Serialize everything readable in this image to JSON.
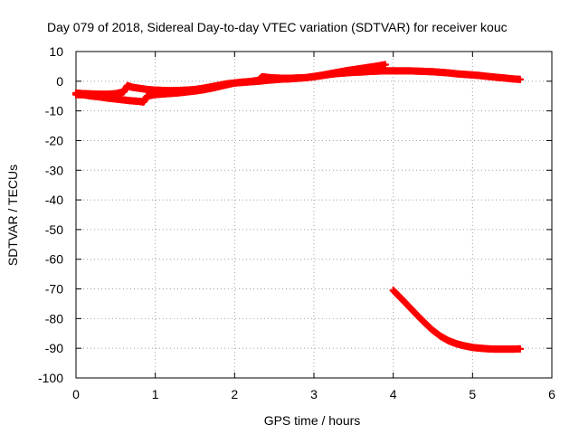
{
  "chart_data": {
    "type": "scatter",
    "title": "Day 079 of 2018, Sidereal Day-to-day VTEC variation (SDTVAR) for receiver kouc",
    "xlabel": "GPS time / hours",
    "ylabel": "SDTVAR / TECUs",
    "xlim": [
      0,
      6
    ],
    "ylim": [
      -100,
      10
    ],
    "x_ticks": [
      "0",
      "1",
      "2",
      "3",
      "4",
      "5",
      "6"
    ],
    "y_ticks": [
      "10",
      "0",
      "-10",
      "-20",
      "-30",
      "-40",
      "-50",
      "-60",
      "-70",
      "-80",
      "-90",
      "-100"
    ],
    "x_tick_values": [
      0,
      1,
      2,
      3,
      4,
      5,
      6
    ],
    "y_tick_values": [
      10,
      0,
      -10,
      -20,
      -30,
      -40,
      -50,
      -60,
      -70,
      -80,
      -90,
      -100
    ],
    "grid": true,
    "marker": "plus",
    "color": "#ff0000",
    "series": [
      {
        "points": [
          [
            0.0,
            -4.5
          ],
          [
            0.1,
            -4.6
          ],
          [
            0.2,
            -5.0
          ],
          [
            0.3,
            -5.3
          ],
          [
            0.4,
            -5.7
          ],
          [
            0.5,
            -6.0
          ],
          [
            0.6,
            -6.3
          ],
          [
            0.7,
            -6.6
          ],
          [
            0.8,
            -6.8
          ],
          [
            0.85,
            -7.0
          ],
          [
            0.9,
            -5.0
          ],
          [
            1.0,
            -4.5
          ],
          [
            1.1,
            -4.3
          ],
          [
            1.2,
            -4.1
          ],
          [
            1.3,
            -3.9
          ],
          [
            1.4,
            -3.6
          ],
          [
            1.5,
            -3.3
          ],
          [
            1.6,
            -2.9
          ],
          [
            1.7,
            -2.4
          ],
          [
            1.8,
            -1.8
          ],
          [
            1.9,
            -1.2
          ],
          [
            2.0,
            -0.6
          ],
          [
            2.1,
            -0.4
          ],
          [
            2.2,
            -0.2
          ],
          [
            2.3,
            0.0
          ],
          [
            2.4,
            0.3
          ],
          [
            2.5,
            0.5
          ],
          [
            2.6,
            0.7
          ],
          [
            2.7,
            0.8
          ],
          [
            2.8,
            1.0
          ],
          [
            2.9,
            1.2
          ],
          [
            3.0,
            1.6
          ],
          [
            3.1,
            2.0
          ],
          [
            3.2,
            2.5
          ],
          [
            3.3,
            3.0
          ],
          [
            3.4,
            3.5
          ],
          [
            3.5,
            3.9
          ],
          [
            3.6,
            4.3
          ],
          [
            3.7,
            4.7
          ],
          [
            3.8,
            5.1
          ],
          [
            3.9,
            5.6
          ]
        ]
      },
      {
        "points": [
          [
            0.0,
            -4.0
          ],
          [
            0.1,
            -4.2
          ],
          [
            0.2,
            -4.3
          ],
          [
            0.3,
            -4.4
          ],
          [
            0.4,
            -4.4
          ],
          [
            0.5,
            -4.2
          ],
          [
            0.6,
            -3.6
          ],
          [
            0.65,
            -1.5
          ],
          [
            0.7,
            -2.0
          ],
          [
            0.8,
            -2.4
          ],
          [
            0.9,
            -2.8
          ],
          [
            1.0,
            -3.0
          ],
          [
            1.1,
            -3.1
          ],
          [
            1.2,
            -3.2
          ],
          [
            1.3,
            -3.1
          ],
          [
            1.4,
            -3.0
          ],
          [
            1.5,
            -2.8
          ],
          [
            1.6,
            -2.4
          ],
          [
            1.7,
            -1.9
          ],
          [
            1.8,
            -1.4
          ],
          [
            1.9,
            -0.9
          ],
          [
            2.0,
            -0.6
          ],
          [
            2.1,
            -0.3
          ],
          [
            2.2,
            -0.1
          ],
          [
            2.3,
            0.3
          ],
          [
            2.35,
            1.5
          ],
          [
            2.4,
            1.3
          ],
          [
            2.5,
            1.1
          ],
          [
            2.6,
            1.0
          ],
          [
            2.7,
            1.0
          ],
          [
            2.8,
            1.1
          ],
          [
            2.9,
            1.2
          ],
          [
            3.0,
            1.5
          ],
          [
            3.1,
            1.9
          ],
          [
            3.2,
            2.3
          ],
          [
            3.3,
            2.6
          ],
          [
            3.4,
            2.8
          ],
          [
            3.5,
            3.0
          ],
          [
            3.6,
            3.1
          ],
          [
            3.7,
            3.3
          ],
          [
            3.8,
            3.4
          ],
          [
            3.9,
            3.5
          ],
          [
            4.0,
            3.5
          ],
          [
            4.1,
            3.5
          ],
          [
            4.2,
            3.5
          ],
          [
            4.3,
            3.4
          ],
          [
            4.4,
            3.3
          ],
          [
            4.5,
            3.2
          ],
          [
            4.6,
            3.0
          ],
          [
            4.7,
            2.8
          ],
          [
            4.8,
            2.5
          ],
          [
            4.9,
            2.3
          ],
          [
            5.0,
            2.1
          ],
          [
            5.1,
            1.9
          ],
          [
            5.2,
            1.6
          ],
          [
            5.3,
            1.3
          ],
          [
            5.4,
            1.1
          ],
          [
            5.5,
            0.8
          ],
          [
            5.6,
            0.6
          ]
        ]
      },
      {
        "points": [
          [
            4.0,
            -70.5
          ],
          [
            4.1,
            -73.2
          ],
          [
            4.2,
            -76.0
          ],
          [
            4.3,
            -78.8
          ],
          [
            4.4,
            -81.5
          ],
          [
            4.5,
            -84.0
          ],
          [
            4.6,
            -86.0
          ],
          [
            4.7,
            -87.5
          ],
          [
            4.8,
            -88.5
          ],
          [
            4.9,
            -89.2
          ],
          [
            5.0,
            -89.7
          ],
          [
            5.1,
            -90.0
          ],
          [
            5.2,
            -90.2
          ],
          [
            5.3,
            -90.3
          ],
          [
            5.4,
            -90.3
          ],
          [
            5.5,
            -90.3
          ],
          [
            5.6,
            -90.2
          ]
        ]
      }
    ]
  }
}
